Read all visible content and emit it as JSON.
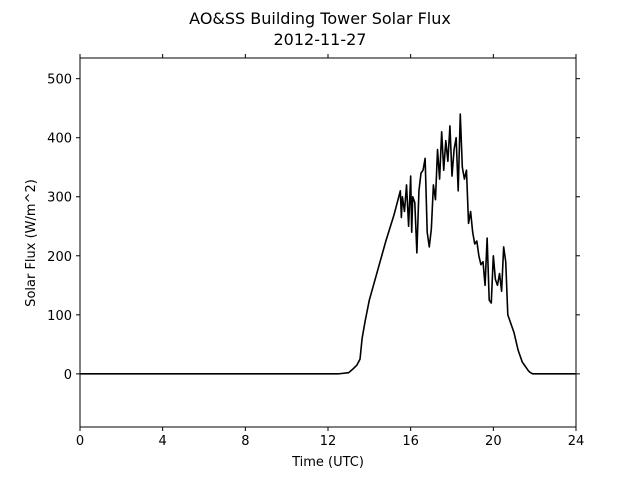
{
  "chart_data": {
    "type": "line",
    "title": "AO&SS Building Tower Solar Flux",
    "subtitle": "2012-11-27",
    "xlabel": "Time (UTC)",
    "ylabel": "Solar Flux (W/m^2)",
    "xlim": [
      0,
      24
    ],
    "ylim": [
      -90,
      535
    ],
    "xticks": [
      0,
      4,
      8,
      12,
      16,
      20,
      24
    ],
    "yticks": [
      0,
      100,
      200,
      300,
      400,
      500
    ],
    "grid": false,
    "legend": "none",
    "line_color": "#000000",
    "series": [
      {
        "x": [
          0,
          12.5,
          13.0,
          13.2,
          13.4,
          13.55,
          13.65,
          13.8,
          14.0,
          14.4,
          14.8,
          15.2,
          15.5,
          15.55,
          15.6,
          15.7,
          15.8,
          15.9,
          16.0,
          16.05,
          16.1,
          16.2,
          16.3,
          16.4,
          16.5,
          16.6,
          16.7,
          16.8,
          16.9,
          17.0,
          17.1,
          17.2,
          17.3,
          17.4,
          17.5,
          17.6,
          17.7,
          17.8,
          17.9,
          18.0,
          18.1,
          18.2,
          18.3,
          18.4,
          18.5,
          18.6,
          18.7,
          18.8,
          18.9,
          19.0,
          19.1,
          19.2,
          19.3,
          19.4,
          19.5,
          19.6,
          19.7,
          19.8,
          19.9,
          20.0,
          20.1,
          20.2,
          20.3,
          20.4,
          20.5,
          20.6,
          20.7,
          20.8,
          20.9,
          21.0,
          21.1,
          21.2,
          21.3,
          21.4,
          21.5,
          21.6,
          21.7,
          21.8,
          21.9,
          22.0,
          22.2,
          22.5,
          22.8,
          23.0,
          24.0
        ],
        "y": [
          0,
          0,
          2,
          8,
          15,
          25,
          60,
          90,
          125,
          175,
          225,
          270,
          310,
          265,
          300,
          275,
          320,
          250,
          335,
          240,
          300,
          290,
          205,
          310,
          340,
          345,
          365,
          240,
          215,
          245,
          320,
          295,
          380,
          330,
          410,
          345,
          395,
          360,
          420,
          335,
          380,
          400,
          310,
          440,
          350,
          330,
          345,
          255,
          275,
          240,
          220,
          225,
          200,
          185,
          190,
          150,
          230,
          125,
          120,
          200,
          160,
          150,
          170,
          140,
          215,
          190,
          100,
          90,
          80,
          70,
          55,
          40,
          30,
          20,
          15,
          10,
          5,
          2,
          0,
          0,
          0,
          0,
          0,
          0,
          0
        ]
      }
    ]
  }
}
